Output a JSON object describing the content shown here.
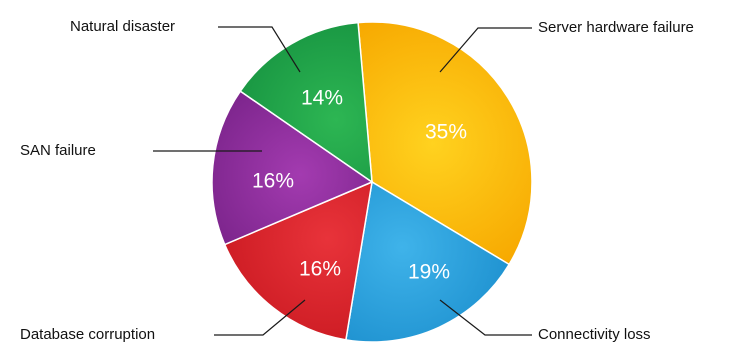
{
  "chart_data": {
    "type": "pie",
    "title": "",
    "slices": [
      {
        "label": "Server hardware failure",
        "value": 35,
        "value_label": "35%",
        "color": "#f7a800",
        "color_hi": "#ffd21f"
      },
      {
        "label": "Connectivity loss",
        "value": 19,
        "value_label": "19%",
        "color": "#1689c9",
        "color_hi": "#3fb3ea"
      },
      {
        "label": "Database corruption",
        "value": 16,
        "value_label": "16%",
        "color": "#c4141c",
        "color_hi": "#e8333a"
      },
      {
        "label": "SAN failure",
        "value": 16,
        "value_label": "16%",
        "color": "#6d1c7e",
        "color_hi": "#a33bb0"
      },
      {
        "label": "Natural disaster",
        "value": 14,
        "value_label": "14%",
        "color": "#118a3c",
        "color_hi": "#2db653"
      }
    ]
  }
}
